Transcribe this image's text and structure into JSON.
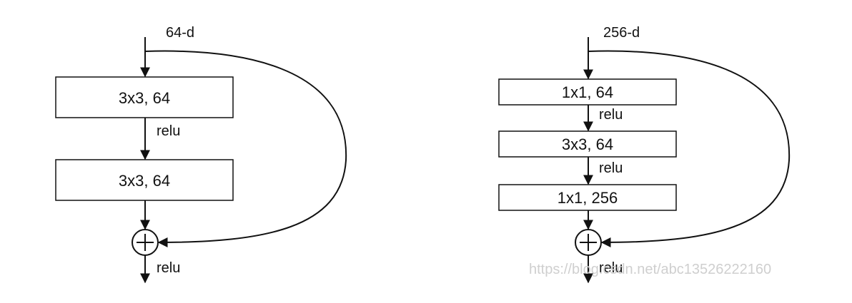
{
  "left_block": {
    "input_label": "64-d",
    "layers": [
      "3x3, 64",
      "3x3, 64"
    ],
    "activations": [
      "relu"
    ],
    "output_activation": "relu",
    "add_symbol": "+"
  },
  "right_block": {
    "input_label": "256-d",
    "layers": [
      "1x1, 64",
      "3x3, 64",
      "1x1, 256"
    ],
    "activations": [
      "relu",
      "relu"
    ],
    "output_activation": "relu",
    "add_symbol": "+"
  },
  "watermark": "https://blog.csdn.net/abc13526222160",
  "colors": {
    "stroke": "#111111",
    "watermark": "#cfcfcf",
    "background": "#ffffff"
  }
}
